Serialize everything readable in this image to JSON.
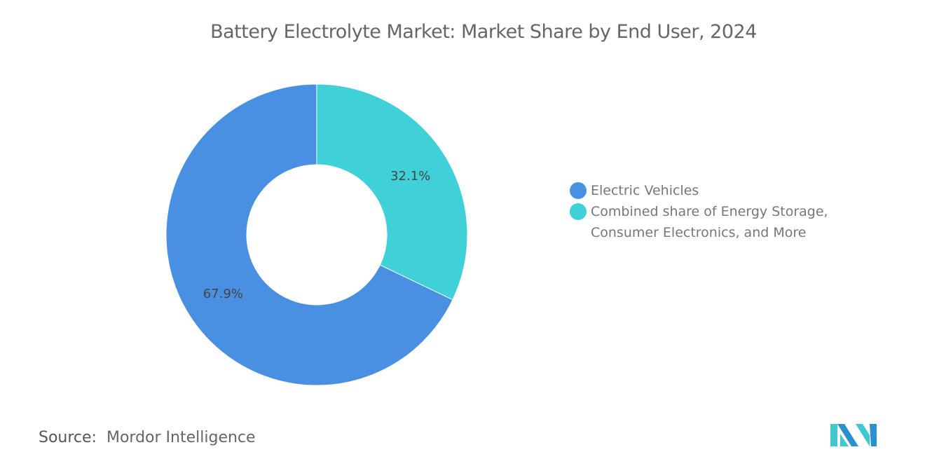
{
  "chart_data": {
    "type": "pie",
    "donut": true,
    "title": "Battery Electrolyte Market: Market Share by End User, 2024",
    "slices": [
      {
        "name": "Combined share of Energy Storage, Consumer Electronics, and More",
        "value": 32.1,
        "label": "32.1%",
        "color": "#40D0D8"
      },
      {
        "name": "Electric Vehicles",
        "value": 67.9,
        "label": "67.9%",
        "color": "#4A90E2"
      }
    ],
    "legend": {
      "placement": "right",
      "items": [
        {
          "label": "Electric Vehicles",
          "color": "#4A90E2"
        },
        {
          "label": "Combined share of Energy Storage, Consumer Electronics, and More",
          "color": "#40D0D8"
        }
      ]
    }
  },
  "source": {
    "label": "Source:",
    "value": "Mordor Intelligence"
  }
}
